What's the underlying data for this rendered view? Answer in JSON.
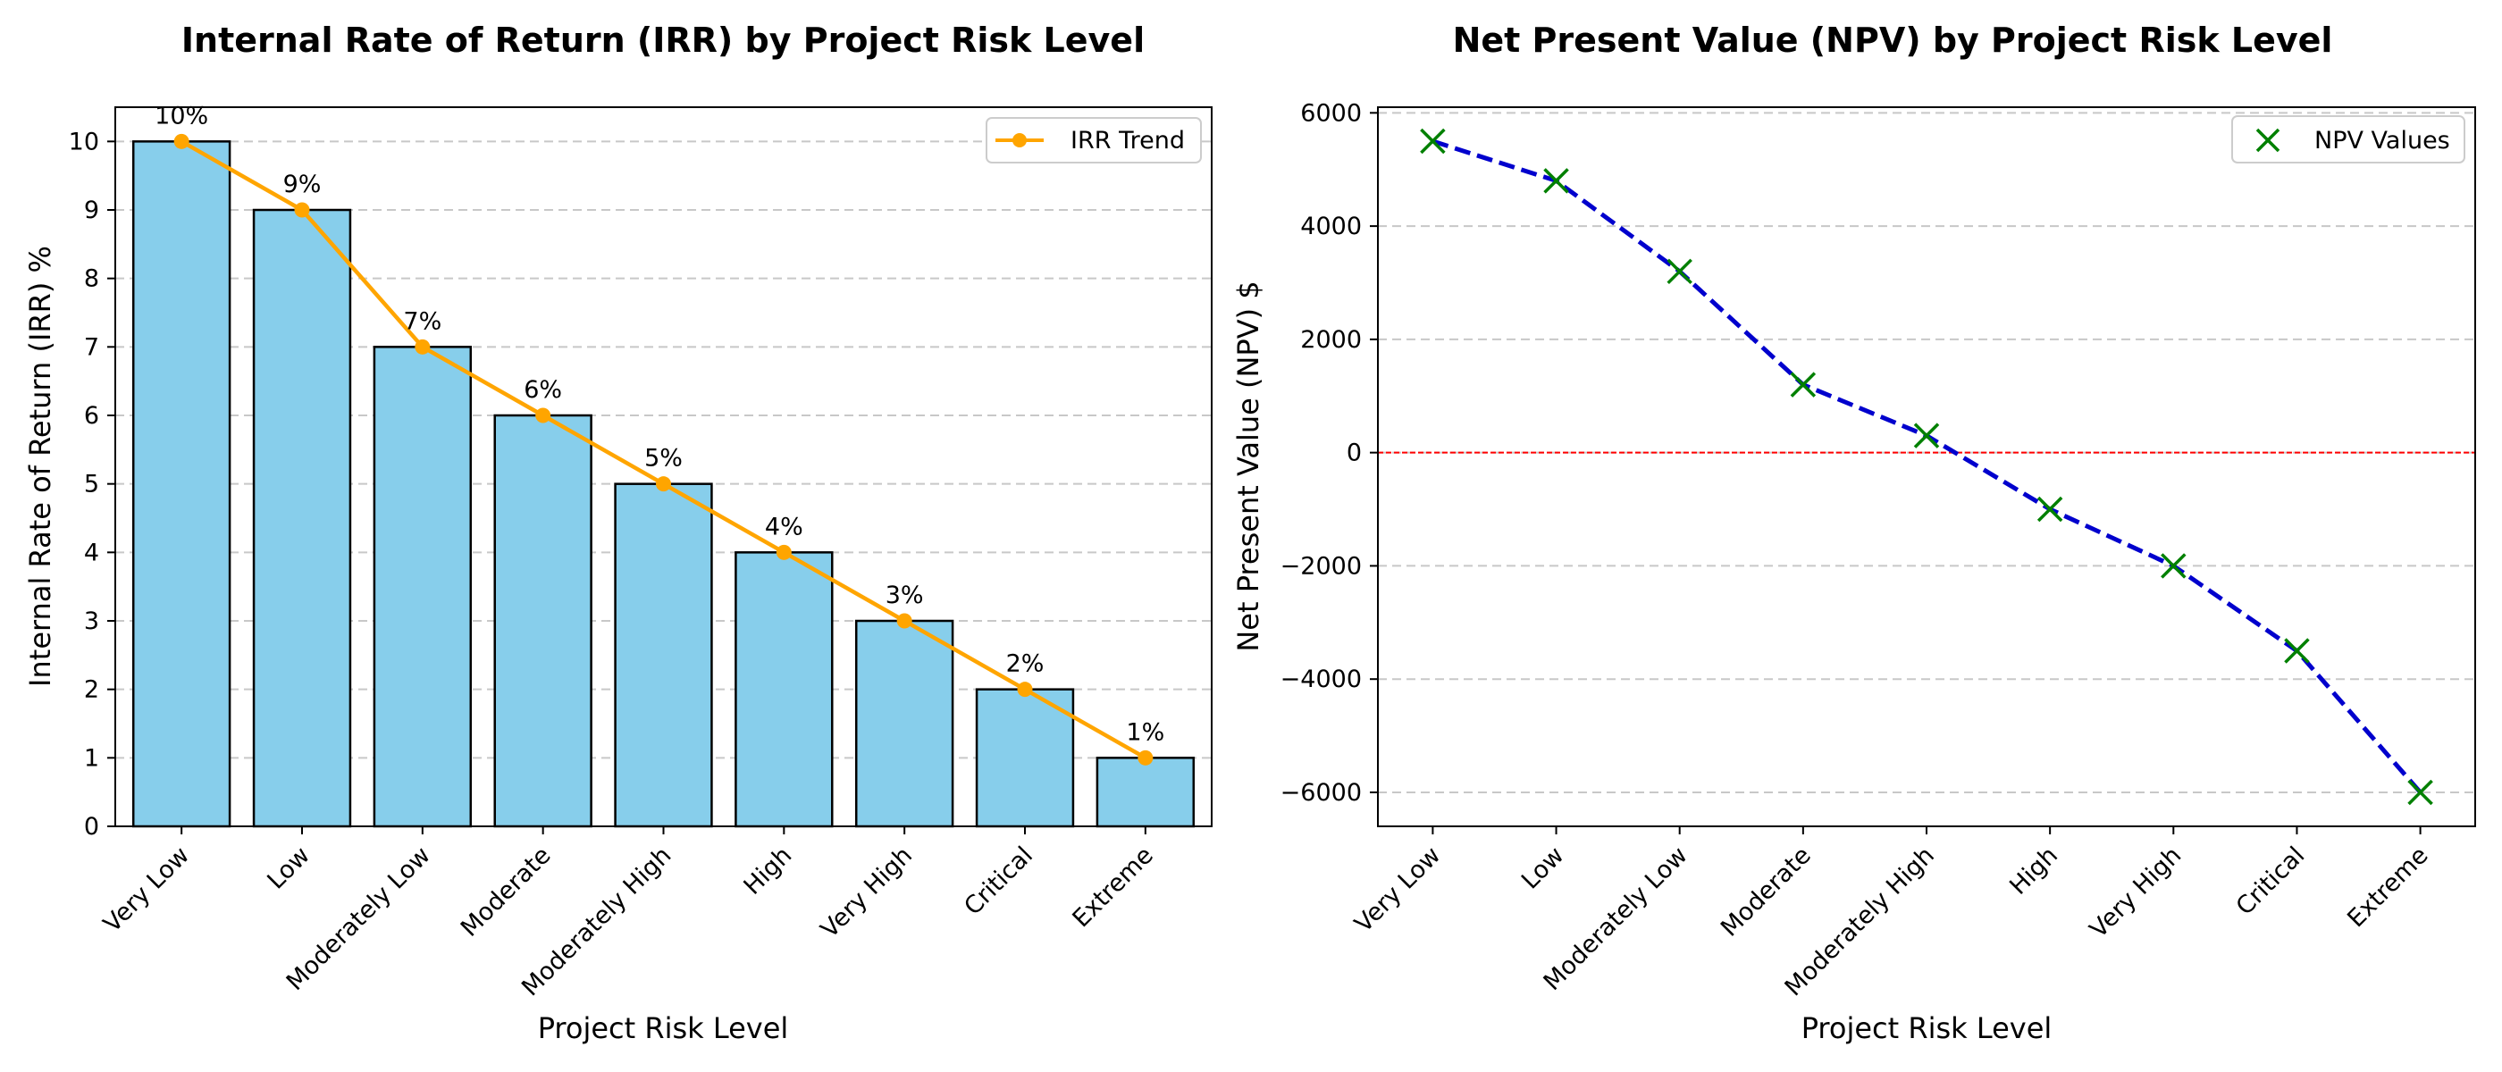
{
  "chart_data": [
    {
      "type": "bar",
      "title": "Internal Rate of Return (IRR) by Project Risk Level",
      "xlabel": "Project Risk Level",
      "ylabel": "Internal Rate of Return (IRR) %",
      "categories": [
        "Very Low",
        "Low",
        "Moderately Low",
        "Moderate",
        "Moderately High",
        "High",
        "Very High",
        "Critical",
        "Extreme"
      ],
      "values": [
        10,
        9,
        7,
        6,
        5,
        4,
        3,
        2,
        1
      ],
      "data_labels": [
        "10%",
        "9%",
        "7%",
        "6%",
        "5%",
        "4%",
        "3%",
        "2%",
        "1%"
      ],
      "ylim": [
        0,
        10.5
      ],
      "yticks": [
        0,
        1,
        2,
        3,
        4,
        5,
        6,
        7,
        8,
        9,
        10
      ],
      "grid": "y-dashed",
      "legend": {
        "position": "top-right",
        "entries": [
          "IRR Trend"
        ]
      },
      "series": [
        {
          "name": "IRR Trend",
          "type": "line",
          "values": [
            10,
            9,
            7,
            6,
            5,
            4,
            3,
            2,
            1
          ],
          "color": "#FFA500",
          "marker": "circle"
        }
      ],
      "colors": {
        "bar": "#87CEEB",
        "bar_edge": "#000000",
        "grid": "#c8c8c8"
      }
    },
    {
      "type": "line",
      "title": "Net Present Value (NPV) by Project Risk Level",
      "xlabel": "Project Risk Level",
      "ylabel": "Net Present Value (NPV) $",
      "categories": [
        "Very Low",
        "Low",
        "Moderately Low",
        "Moderate",
        "Moderately High",
        "High",
        "Very High",
        "Critical",
        "Extreme"
      ],
      "ylim": [
        -6600,
        6100
      ],
      "yticks": [
        -6000,
        -4000,
        -2000,
        0,
        2000,
        4000,
        6000
      ],
      "grid": "y-dashed",
      "reference_line": {
        "y": 0,
        "color": "#FF0000",
        "style": "dashed"
      },
      "legend": {
        "position": "top-right",
        "entries": [
          "NPV Values"
        ]
      },
      "series": [
        {
          "name": "NPV Values",
          "values": [
            5500,
            4800,
            3200,
            1200,
            300,
            -1000,
            -2000,
            -3500,
            -6000
          ],
          "line_color": "#0000CD",
          "line_style": "dashed",
          "marker": "x",
          "marker_color": "#008000"
        }
      ]
    }
  ]
}
